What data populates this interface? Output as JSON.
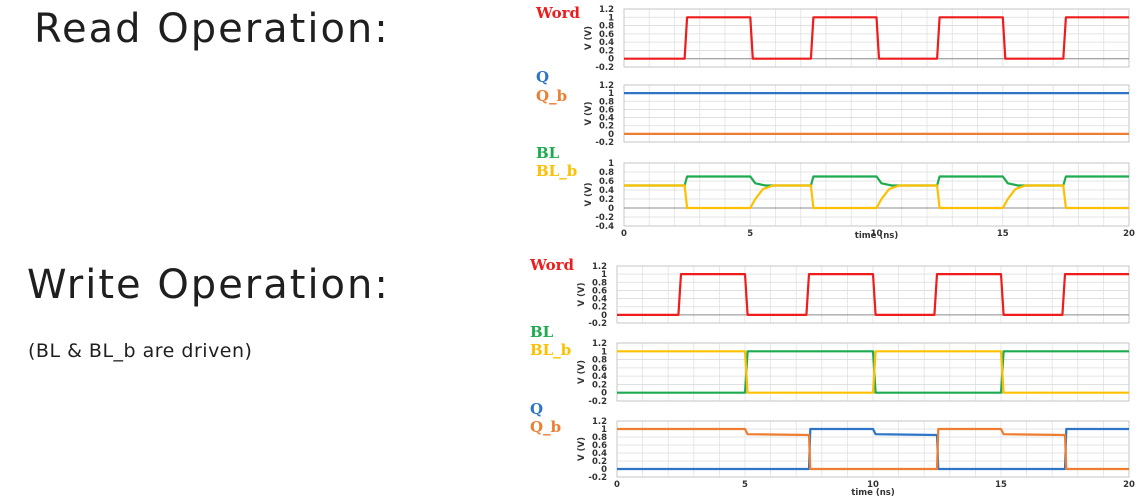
{
  "read_heading": "Read Operation:",
  "write_heading": "Write Operation:",
  "write_note": "(BL & BL_b are driven)",
  "colors": {
    "red": "#ee1c1c",
    "blue": "#2e75c8",
    "orange": "#ed7d31",
    "green": "#1faa50",
    "yellow": "#ffc000"
  },
  "chart_data": [
    {
      "id": "read-word",
      "type": "line",
      "ylabel": "V (V)",
      "xlabel": "",
      "xlim": [
        0,
        20
      ],
      "ylim": [
        -0.2,
        1.2
      ],
      "yticks": [
        -0.2,
        0,
        0.2,
        0.4,
        0.6,
        0.8,
        1,
        1.2
      ],
      "series": [
        {
          "name": "Word",
          "color": "#ee1c1c",
          "points": [
            [
              0,
              0
            ],
            [
              2.4,
              0
            ],
            [
              2.5,
              1
            ],
            [
              5,
              1
            ],
            [
              5.1,
              0
            ],
            [
              7.4,
              0
            ],
            [
              7.5,
              1
            ],
            [
              10,
              1
            ],
            [
              10.1,
              0
            ],
            [
              12.4,
              0
            ],
            [
              12.5,
              1
            ],
            [
              15,
              1
            ],
            [
              15.1,
              0
            ],
            [
              17.4,
              0
            ],
            [
              17.5,
              1
            ],
            [
              20,
              1
            ]
          ]
        }
      ]
    },
    {
      "id": "read-q",
      "type": "line",
      "ylabel": "V (V)",
      "xlabel": "",
      "xlim": [
        0,
        20
      ],
      "ylim": [
        -0.2,
        1.2
      ],
      "yticks": [
        -0.2,
        0,
        0.2,
        0.4,
        0.6,
        0.8,
        1,
        1.2
      ],
      "series": [
        {
          "name": "Q",
          "color": "#2e75c8",
          "points": [
            [
              0,
              1
            ],
            [
              20,
              1
            ]
          ]
        },
        {
          "name": "Q_b",
          "color": "#ed7d31",
          "points": [
            [
              0,
              0
            ],
            [
              20,
              0
            ]
          ]
        }
      ]
    },
    {
      "id": "read-bl",
      "type": "line",
      "ylabel": "V (V)",
      "xlabel": "time (ns)",
      "xlim": [
        0,
        20
      ],
      "ylim": [
        -0.4,
        1
      ],
      "yticks": [
        -0.4,
        -0.2,
        0,
        0.2,
        0.4,
        0.6,
        0.8,
        1
      ],
      "xticks": [
        0,
        5,
        10,
        15,
        20
      ],
      "series": [
        {
          "name": "BL",
          "color": "#1faa50",
          "points": [
            [
              0,
              0.5
            ],
            [
              2.4,
              0.5
            ],
            [
              2.5,
              0.7
            ],
            [
              5,
              0.7
            ],
            [
              5.2,
              0.55
            ],
            [
              5.6,
              0.5
            ],
            [
              7.4,
              0.5
            ],
            [
              7.5,
              0.7
            ],
            [
              10,
              0.7
            ],
            [
              10.2,
              0.55
            ],
            [
              10.6,
              0.5
            ],
            [
              12.4,
              0.5
            ],
            [
              12.5,
              0.7
            ],
            [
              15,
              0.7
            ],
            [
              15.2,
              0.55
            ],
            [
              15.6,
              0.5
            ],
            [
              17.4,
              0.5
            ],
            [
              17.5,
              0.7
            ],
            [
              20,
              0.7
            ]
          ]
        },
        {
          "name": "BL_b",
          "color": "#ffc000",
          "points": [
            [
              0,
              0.5
            ],
            [
              2.4,
              0.5
            ],
            [
              2.5,
              0
            ],
            [
              5,
              0
            ],
            [
              5.2,
              0.2
            ],
            [
              5.5,
              0.42
            ],
            [
              5.9,
              0.5
            ],
            [
              7.4,
              0.5
            ],
            [
              7.5,
              0
            ],
            [
              10,
              0
            ],
            [
              10.2,
              0.2
            ],
            [
              10.5,
              0.42
            ],
            [
              10.9,
              0.5
            ],
            [
              12.4,
              0.5
            ],
            [
              12.5,
              0
            ],
            [
              15,
              0
            ],
            [
              15.2,
              0.2
            ],
            [
              15.5,
              0.42
            ],
            [
              15.9,
              0.5
            ],
            [
              17.4,
              0.5
            ],
            [
              17.5,
              0
            ],
            [
              20,
              0
            ]
          ]
        }
      ]
    },
    {
      "id": "write-word",
      "type": "line",
      "ylabel": "V (V)",
      "xlabel": "",
      "xlim": [
        0,
        20
      ],
      "ylim": [
        -0.2,
        1.2
      ],
      "yticks": [
        -0.2,
        0,
        0.2,
        0.4,
        0.6,
        0.8,
        1,
        1.2
      ],
      "series": [
        {
          "name": "Word",
          "color": "#ee1c1c",
          "points": [
            [
              0,
              0
            ],
            [
              2.4,
              0
            ],
            [
              2.5,
              1
            ],
            [
              5,
              1
            ],
            [
              5.1,
              0
            ],
            [
              7.4,
              0
            ],
            [
              7.5,
              1
            ],
            [
              10,
              1
            ],
            [
              10.1,
              0
            ],
            [
              12.4,
              0
            ],
            [
              12.5,
              1
            ],
            [
              15,
              1
            ],
            [
              15.1,
              0
            ],
            [
              17.4,
              0
            ],
            [
              17.5,
              1
            ],
            [
              20,
              1
            ]
          ]
        }
      ]
    },
    {
      "id": "write-bl",
      "type": "line",
      "ylabel": "V (V)",
      "xlabel": "",
      "xlim": [
        0,
        20
      ],
      "ylim": [
        -0.2,
        1.2
      ],
      "yticks": [
        -0.2,
        0,
        0.2,
        0.4,
        0.6,
        0.8,
        1,
        1.2
      ],
      "series": [
        {
          "name": "BL",
          "color": "#1faa50",
          "points": [
            [
              0,
              0
            ],
            [
              5,
              0
            ],
            [
              5.1,
              1
            ],
            [
              10,
              1
            ],
            [
              10.1,
              0
            ],
            [
              15,
              0
            ],
            [
              15.1,
              1
            ],
            [
              20,
              1
            ]
          ]
        },
        {
          "name": "BL_b",
          "color": "#ffc000",
          "points": [
            [
              0,
              1
            ],
            [
              5,
              1
            ],
            [
              5.1,
              0
            ],
            [
              10,
              0
            ],
            [
              10.1,
              1
            ],
            [
              15,
              1
            ],
            [
              15.1,
              0
            ],
            [
              20,
              0
            ]
          ]
        }
      ]
    },
    {
      "id": "write-q",
      "type": "line",
      "ylabel": "V (V)",
      "xlabel": "time (ns)",
      "xlim": [
        0,
        20
      ],
      "ylim": [
        -0.2,
        1.2
      ],
      "yticks": [
        -0.2,
        0,
        0.2,
        0.4,
        0.6,
        0.8,
        1,
        1.2
      ],
      "xticks": [
        0,
        5,
        10,
        15,
        20
      ],
      "series": [
        {
          "name": "Q",
          "color": "#2e75c8",
          "points": [
            [
              0,
              0
            ],
            [
              7.5,
              0
            ],
            [
              7.55,
              1
            ],
            [
              10,
              1
            ],
            [
              10.1,
              0.87
            ],
            [
              12.5,
              0.85
            ],
            [
              12.55,
              0
            ],
            [
              17.5,
              0
            ],
            [
              17.55,
              1
            ],
            [
              20,
              1
            ]
          ]
        },
        {
          "name": "Q_b",
          "color": "#ed7d31",
          "points": [
            [
              0,
              1
            ],
            [
              5,
              1
            ],
            [
              5.1,
              0.87
            ],
            [
              7.5,
              0.85
            ],
            [
              7.55,
              0
            ],
            [
              12.5,
              0
            ],
            [
              12.55,
              1
            ],
            [
              15,
              1
            ],
            [
              15.1,
              0.87
            ],
            [
              17.5,
              0.85
            ],
            [
              17.55,
              0
            ],
            [
              20,
              0
            ]
          ]
        }
      ]
    }
  ]
}
